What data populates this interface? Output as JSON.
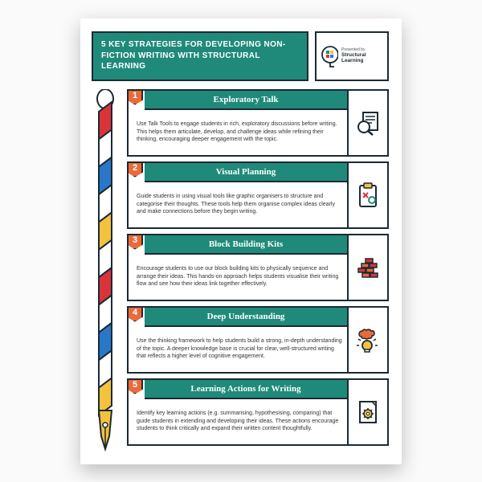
{
  "colors": {
    "teal": "#1f8a7a",
    "orange": "#e96a3a",
    "outline": "#1b2a33",
    "red": "#d9343a",
    "blue": "#2a77c9",
    "yellow": "#f4c23c",
    "white": "#ffffff"
  },
  "header": {
    "title": "5 KEY STRATEGIES FOR DEVELOPING NON-FICTION WRITING WITH STRUCTURAL LEARNING",
    "brand_presented": "Presented by",
    "brand_name": "Structural Learning"
  },
  "cards": [
    {
      "num": "1",
      "title": "Exploratory Talk",
      "body": "Use Talk Tools to engage students in rich, exploratory discussions before writing. This helps them articulate, develop, and challenge ideas while refining their thinking, encouraging deeper engagement with the topic.",
      "icon": "magnifier-doc"
    },
    {
      "num": "2",
      "title": "Visual Planning",
      "body": "Guide students in using visual tools like graphic organisers to structure and categorise their thoughts. These tools help them organise complex ideas clearly and make connections before they begin writing.",
      "icon": "clipboard-shapes"
    },
    {
      "num": "3",
      "title": "Block Building Kits",
      "body": "Encourage students to use our block building kits to physically sequence and arrange their ideas. This hands-on approach helps students visualise their writing flow and see how their ideas link together effectively.",
      "icon": "bricks"
    },
    {
      "num": "4",
      "title": "Deep Understanding",
      "body": "Use the thinking framework to help students build a strong, in-depth understanding of the topic. A deeper knowledge base is crucial for clear, well-structured writing that reflects a higher level of cognitive engagement.",
      "icon": "bulb-brain"
    },
    {
      "num": "5",
      "title": "Learning Actions for Writing",
      "body": "Identify key learning actions (e.g. summarising, hypothesising, comparing) that guide students in extending and developing their ideas. These actions encourage students to think critically and expand their written content thoughtfully.",
      "icon": "doc-gear"
    }
  ],
  "pen": {
    "segment_colors": [
      "#d9343a",
      "#ffffff",
      "#2a77c9",
      "#ffffff",
      "#f4c23c",
      "#ffffff",
      "#d9343a",
      "#ffffff",
      "#2a77c9",
      "#ffffff",
      "#f4c23c"
    ]
  }
}
